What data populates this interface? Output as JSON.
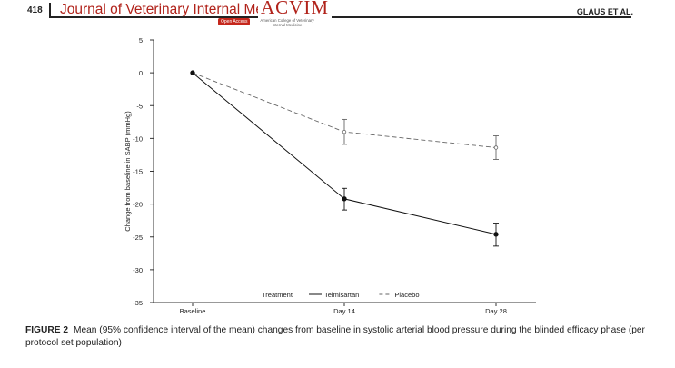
{
  "header": {
    "page_number": "418",
    "journal_title": "Journal of Veterinary Internal Medicine",
    "logo_text": "ACVIM",
    "open_access_label": "Open Access",
    "logo_subtitle": "American College of Veterinary Internal Medicine",
    "running_head": "GLAUS ET AL."
  },
  "chart_data": {
    "type": "line",
    "title": "",
    "xlabel": "",
    "ylabel": "Change from baseline in SABP (mmHg)",
    "categories": [
      "Baseline",
      "Day 14",
      "Day 28"
    ],
    "ylim": [
      -35,
      5
    ],
    "yticks": [
      5,
      0,
      -5,
      -10,
      -15,
      -20,
      -25,
      -30,
      -35
    ],
    "grid": false,
    "legend": {
      "title": "Treatment",
      "position": "bottom-center"
    },
    "series": [
      {
        "name": "Telmisartan",
        "style": "solid",
        "marker": "filled-circle",
        "color": "#111111",
        "values": [
          0,
          -19.2,
          -24.6
        ],
        "ci_lower": [
          0,
          -20.9,
          -26.4
        ],
        "ci_upper": [
          0,
          -17.6,
          -22.9
        ]
      },
      {
        "name": "Placebo",
        "style": "dashed",
        "marker": "open-circle",
        "color": "#666666",
        "values": [
          0,
          -9.0,
          -11.4
        ],
        "ci_lower": [
          0,
          -10.9,
          -13.2
        ],
        "ci_upper": [
          0,
          -7.1,
          -9.6
        ]
      }
    ]
  },
  "caption": {
    "label": "FIGURE 2",
    "text": "Mean (95% confidence interval of the mean) changes from baseline in systolic arterial blood pressure during the blinded efficacy phase (per protocol set population)"
  }
}
